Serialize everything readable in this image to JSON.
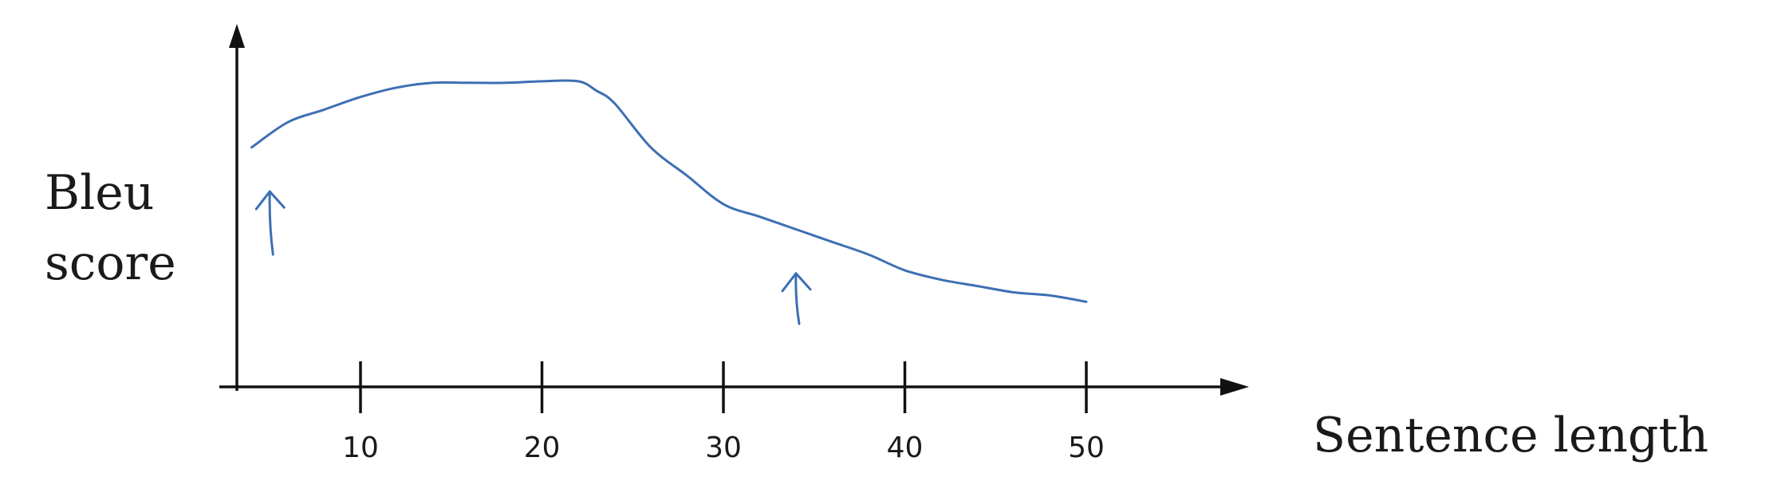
{
  "chart_data": {
    "type": "line",
    "title": "",
    "ylabel_lines": [
      "Bleu",
      "score"
    ],
    "xlabel": "Sentence length",
    "x_ticks": [
      10,
      20,
      30,
      40,
      50
    ],
    "xlim": [
      3,
      55
    ],
    "ylim": [
      0,
      1
    ],
    "grid": false,
    "series": [
      {
        "color": "#3d6fb3",
        "x": [
          4,
          6,
          8,
          10,
          12,
          14,
          16,
          18,
          20,
          22,
          23,
          24,
          26,
          28,
          30,
          32,
          34,
          36,
          38,
          40,
          42,
          44,
          46,
          48,
          50
        ],
        "y": [
          0.76,
          0.84,
          0.88,
          0.92,
          0.95,
          0.965,
          0.965,
          0.965,
          0.97,
          0.97,
          0.94,
          0.9,
          0.76,
          0.67,
          0.58,
          0.54,
          0.5,
          0.46,
          0.42,
          0.37,
          0.34,
          0.32,
          0.3,
          0.29,
          0.27
        ]
      }
    ],
    "annotations": [
      {
        "type": "arrow-up",
        "x": 5,
        "y_from": 0.42,
        "y_to": 0.62,
        "color": "#3d6fb3"
      },
      {
        "type": "arrow-up",
        "x": 34,
        "y_from": 0.2,
        "y_to": 0.36,
        "color": "#3d6fb3"
      }
    ]
  }
}
